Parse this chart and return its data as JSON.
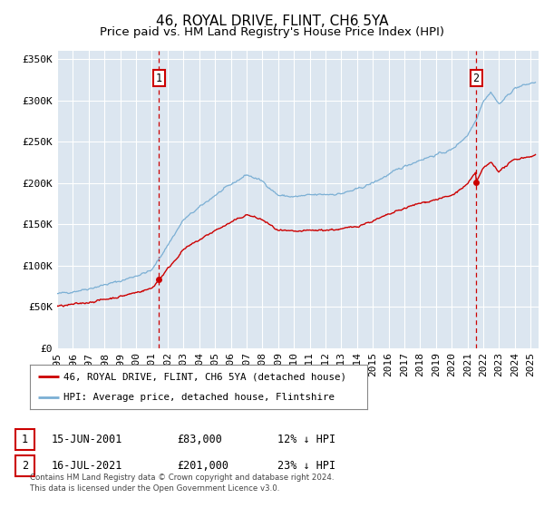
{
  "title": "46, ROYAL DRIVE, FLINT, CH6 5YA",
  "subtitle": "Price paid vs. HM Land Registry's House Price Index (HPI)",
  "ylabel_ticks": [
    "£0",
    "£50K",
    "£100K",
    "£150K",
    "£200K",
    "£250K",
    "£300K",
    "£350K"
  ],
  "ytick_values": [
    0,
    50000,
    100000,
    150000,
    200000,
    250000,
    300000,
    350000
  ],
  "ylim": [
    0,
    360000
  ],
  "xlim_start": 1995.0,
  "xlim_end": 2025.5,
  "hpi_color": "#7bafd4",
  "price_color": "#cc0000",
  "bg_color": "#dce6f0",
  "sale1_year": 2001.458,
  "sale1_price": 83000,
  "sale2_year": 2021.542,
  "sale2_price": 201000,
  "legend_label1": "46, ROYAL DRIVE, FLINT, CH6 5YA (detached house)",
  "legend_label2": "HPI: Average price, detached house, Flintshire",
  "annotation1_label": "1",
  "annotation2_label": "2",
  "table_row1": [
    "1",
    "15-JUN-2001",
    "£83,000",
    "12% ↓ HPI"
  ],
  "table_row2": [
    "2",
    "16-JUL-2021",
    "£201,000",
    "23% ↓ HPI"
  ],
  "footer": "Contains HM Land Registry data © Crown copyright and database right 2024.\nThis data is licensed under the Open Government Licence v3.0.",
  "title_fontsize": 11,
  "subtitle_fontsize": 9.5,
  "tick_fontsize": 8,
  "xtick_years": [
    1995,
    1996,
    1997,
    1998,
    1999,
    2000,
    2001,
    2002,
    2003,
    2004,
    2005,
    2006,
    2007,
    2008,
    2009,
    2010,
    2011,
    2012,
    2013,
    2014,
    2015,
    2016,
    2017,
    2018,
    2019,
    2020,
    2021,
    2022,
    2023,
    2024,
    2025
  ]
}
